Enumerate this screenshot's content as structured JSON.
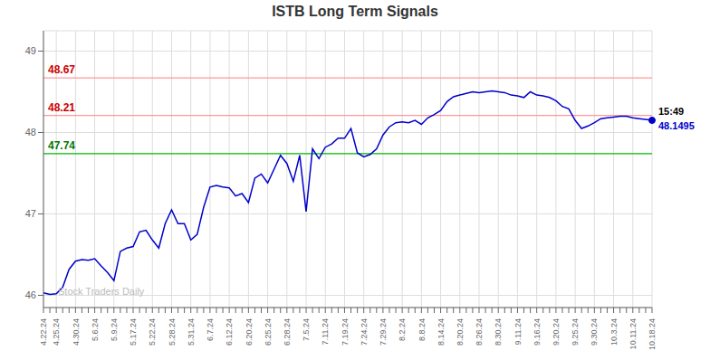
{
  "chart_data": {
    "type": "line",
    "title": "ISTB Long Term Signals",
    "watermark": "Stock Traders Daily",
    "color": "#0000cc",
    "ylim": [
      45.85,
      49.25
    ],
    "yticks": [
      46,
      47,
      48,
      49
    ],
    "grid": true,
    "categories": [
      "4.22.24",
      null,
      "4.25.24",
      null,
      null,
      "4.30.24",
      null,
      null,
      "5.6.24",
      null,
      null,
      "5.9.24",
      null,
      null,
      "5.17.24",
      null,
      null,
      "5.22.24",
      null,
      null,
      "5.28.24",
      null,
      null,
      "5.31.24",
      null,
      null,
      "6.7.24",
      null,
      null,
      "6.12.24",
      null,
      null,
      "6.20.24",
      null,
      null,
      "6.25.24",
      null,
      null,
      "6.28.24",
      null,
      null,
      "7.5.24",
      null,
      null,
      "7.11.24",
      null,
      null,
      "7.19.24",
      null,
      null,
      "7.24.24",
      null,
      null,
      "7.29.24",
      null,
      null,
      "8.2.24",
      null,
      null,
      "8.8.24",
      null,
      null,
      "8.14.24",
      null,
      null,
      "8.20.24",
      null,
      null,
      "8.26.24",
      null,
      null,
      "8.30.24",
      null,
      null,
      "9.11.24",
      null,
      null,
      "9.16.24",
      null,
      null,
      "9.20.24",
      null,
      null,
      "9.25.24",
      null,
      null,
      "9.30.24",
      null,
      null,
      "10.3.24",
      null,
      null,
      "10.11.24",
      null,
      null,
      "10.18.24"
    ],
    "values": [
      46.03,
      46.01,
      46.02,
      46.1,
      46.32,
      46.42,
      46.44,
      46.43,
      46.45,
      46.36,
      46.28,
      46.18,
      46.54,
      46.58,
      46.6,
      46.78,
      46.8,
      46.68,
      46.58,
      46.88,
      47.05,
      46.88,
      46.88,
      46.68,
      46.75,
      47.08,
      47.33,
      47.35,
      47.33,
      47.32,
      47.22,
      47.25,
      47.14,
      47.44,
      47.49,
      47.38,
      47.55,
      47.72,
      47.62,
      47.4,
      47.72,
      47.03,
      47.8,
      47.68,
      47.82,
      47.86,
      47.93,
      47.93,
      48.05,
      47.75,
      47.7,
      47.73,
      47.8,
      47.97,
      48.07,
      48.12,
      48.13,
      48.12,
      48.15,
      48.1,
      48.18,
      48.22,
      48.27,
      48.38,
      48.44,
      48.46,
      48.48,
      48.5,
      48.49,
      48.5,
      48.51,
      48.5,
      48.49,
      48.46,
      48.45,
      48.43,
      48.5,
      48.46,
      48.45,
      48.43,
      48.39,
      48.32,
      48.29,
      48.15,
      48.05,
      48.08,
      48.12,
      48.17,
      48.18,
      48.19,
      48.2,
      48.2,
      48.18,
      48.17,
      48.16,
      48.15
    ],
    "hlines": [
      {
        "value": 47.74,
        "label": "47.74",
        "color": "#00bb00",
        "label_color": "#007700"
      },
      {
        "value": 48.21,
        "label": "48.21",
        "color": "#ff9999",
        "label_color": "#cc0000"
      },
      {
        "value": 48.67,
        "label": "48.67",
        "color": "#ff9999",
        "label_color": "#cc0000"
      }
    ],
    "last_point": {
      "time": "15:49",
      "label": "48.1495",
      "color": "#0000cc",
      "marker": "circle"
    }
  }
}
